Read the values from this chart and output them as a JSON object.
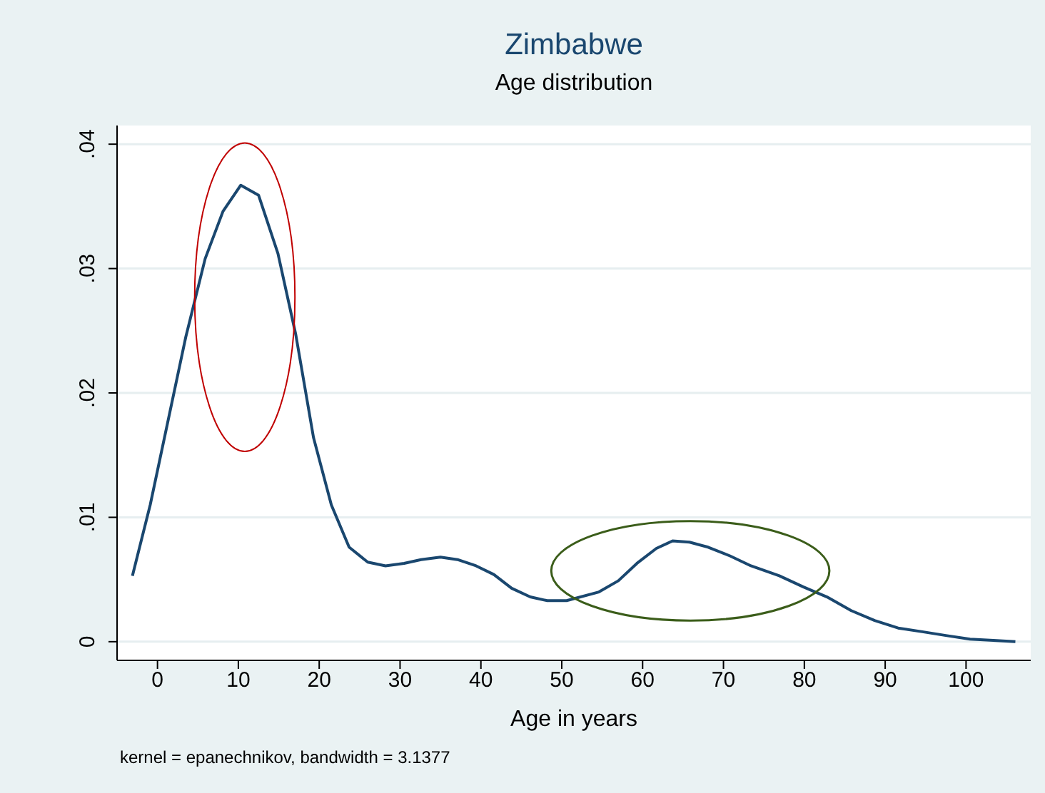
{
  "chart_data": {
    "type": "line",
    "title": "Zimbabwe",
    "subtitle": "Age distribution",
    "xlabel": "Age in years",
    "annotations": [
      "kernel = epanechnikov, bandwidth = 3.1377"
    ],
    "series": [
      {
        "color": "#1a476f",
        "x": [
          -3.1,
          -0.9,
          3.5,
          5.9,
          8.1,
          10.3,
          12.5,
          14.9,
          17.1,
          19.3,
          21.5,
          23.7,
          26.0,
          28.2,
          30.5,
          32.6,
          35.0,
          37.1,
          39.4,
          41.6,
          43.8,
          46.1,
          48.2,
          50.6,
          54.6,
          57.0,
          59.3,
          61.7,
          63.7,
          65.8,
          68.1,
          70.8,
          73.4,
          76.9,
          79.9,
          82.8,
          85.8,
          88.7,
          91.6,
          94.6,
          97.5,
          100.5,
          103.4,
          106.1
        ],
        "values": [
          0.0053,
          0.011,
          0.0245,
          0.0308,
          0.0346,
          0.0367,
          0.0359,
          0.0312,
          0.0247,
          0.0164,
          0.011,
          0.0076,
          0.0064,
          0.0061,
          0.0063,
          0.0066,
          0.0068,
          0.0066,
          0.0061,
          0.0054,
          0.0043,
          0.0036,
          0.0033,
          0.0033,
          0.004,
          0.0049,
          0.0063,
          0.0075,
          0.0081,
          0.008,
          0.0076,
          0.0069,
          0.0061,
          0.0053,
          0.0044,
          0.0036,
          0.0025,
          0.0017,
          0.0011,
          0.0008,
          0.0005,
          0.0002,
          0.0001,
          0
        ]
      }
    ],
    "xlim": [
      -5,
      108
    ],
    "xticks": [
      0,
      10,
      20,
      30,
      40,
      50,
      60,
      70,
      80,
      90,
      100
    ],
    "ylim": [
      -0.0015,
      0.0415
    ],
    "yticks": [
      {
        "value": 0,
        "label": "0"
      },
      {
        "value": 0.01,
        "label": ".01"
      },
      {
        "value": 0.02,
        "label": ".02"
      },
      {
        "value": 0.03,
        "label": ".03"
      },
      {
        "value": 0.04,
        "label": ".04"
      }
    ],
    "grid": "y",
    "marker": "none",
    "line_style": "solid",
    "legend": false
  }
}
